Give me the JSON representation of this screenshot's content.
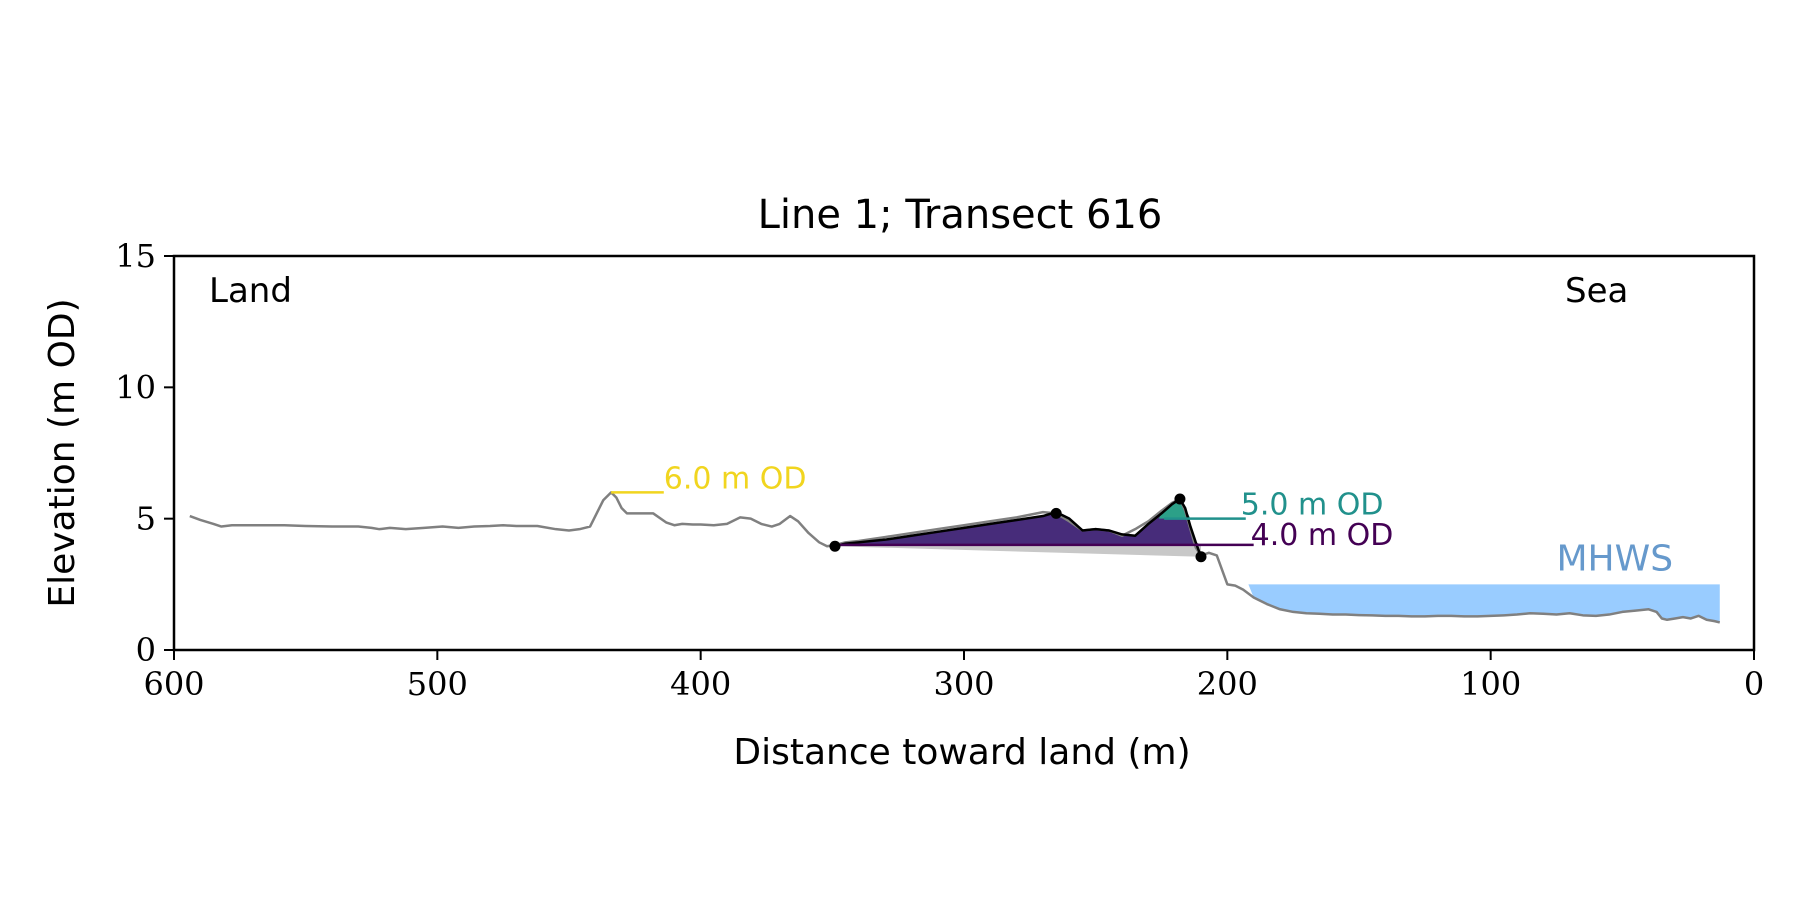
{
  "chart_data": {
    "type": "line",
    "title": "Line 1; Transect 616",
    "xlabel": "Distance toward land (m)",
    "ylabel": "Elevation (m OD)",
    "xlim": [
      600,
      0
    ],
    "ylim": [
      0,
      15
    ],
    "x_ticks": [
      600,
      500,
      400,
      300,
      200,
      100,
      0
    ],
    "y_ticks": [
      0,
      5,
      10,
      15
    ],
    "grid": false,
    "annotations": {
      "land": "Land",
      "sea": "Sea",
      "mhws": "MHWS"
    },
    "colors": {
      "profile": "#808080",
      "dune_outline": "#000000",
      "fill_4m": "#472c7a",
      "fill_5m": "#2ca088",
      "fill_below": "#c8c8c8",
      "contour_6m": "#f1d51f",
      "contour_5m": "#21918c",
      "contour_4m": "#440154",
      "mhws_fill": "#99ccff",
      "mhws_text": "#6699cc"
    },
    "mhws_level": 2.5,
    "mhws_x_range": [
      192,
      13
    ],
    "profile": {
      "x": [
        594,
        590,
        585,
        582,
        578,
        572,
        565,
        558,
        550,
        540,
        530,
        525,
        522,
        518,
        512,
        505,
        498,
        492,
        486,
        480,
        475,
        470,
        462,
        455,
        450,
        446,
        442,
        440,
        437,
        434,
        432,
        430,
        428,
        426,
        422,
        418,
        413,
        410,
        407,
        403,
        400,
        395,
        390,
        385,
        381,
        377,
        373,
        370,
        366,
        363,
        359,
        355,
        352,
        349,
        345,
        340,
        330,
        320,
        310,
        300,
        290,
        280,
        270,
        265,
        260,
        255,
        250,
        245,
        240,
        235,
        230,
        225,
        221,
        218,
        216,
        214,
        212,
        210,
        207,
        204,
        200,
        197,
        194,
        190,
        185,
        180,
        175,
        170,
        165,
        160,
        155,
        150,
        145,
        140,
        135,
        130,
        125,
        120,
        115,
        110,
        105,
        100,
        95,
        90,
        85,
        80,
        75,
        70,
        65,
        60,
        55,
        50,
        45,
        40,
        37,
        35,
        33,
        30,
        27,
        24,
        21,
        18,
        15,
        13
      ],
      "y": [
        5.1,
        4.95,
        4.8,
        4.7,
        4.75,
        4.75,
        4.75,
        4.75,
        4.72,
        4.7,
        4.7,
        4.65,
        4.6,
        4.65,
        4.6,
        4.65,
        4.7,
        4.65,
        4.7,
        4.72,
        4.75,
        4.72,
        4.72,
        4.6,
        4.55,
        4.6,
        4.7,
        5.1,
        5.7,
        6.0,
        5.8,
        5.4,
        5.2,
        5.2,
        5.2,
        5.2,
        4.85,
        4.75,
        4.8,
        4.78,
        4.78,
        4.75,
        4.8,
        5.05,
        5.0,
        4.8,
        4.7,
        4.8,
        5.1,
        4.9,
        4.45,
        4.1,
        3.95,
        4.0,
        4.1,
        4.15,
        4.3,
        4.45,
        4.6,
        4.75,
        4.9,
        5.05,
        5.25,
        5.2,
        4.9,
        4.55,
        4.6,
        4.55,
        4.35,
        4.6,
        4.9,
        5.3,
        5.6,
        5.75,
        5.3,
        4.6,
        3.9,
        3.6,
        3.7,
        3.6,
        2.5,
        2.45,
        2.3,
        2.0,
        1.75,
        1.55,
        1.45,
        1.4,
        1.38,
        1.35,
        1.35,
        1.33,
        1.32,
        1.3,
        1.3,
        1.28,
        1.28,
        1.3,
        1.3,
        1.28,
        1.28,
        1.3,
        1.32,
        1.35,
        1.4,
        1.38,
        1.35,
        1.4,
        1.32,
        1.3,
        1.35,
        1.45,
        1.5,
        1.55,
        1.45,
        1.2,
        1.15,
        1.2,
        1.25,
        1.2,
        1.3,
        1.15,
        1.1,
        1.05
      ]
    },
    "dune": {
      "x": [
        349,
        345,
        340,
        330,
        320,
        310,
        300,
        290,
        280,
        270,
        265,
        260,
        255,
        250,
        245,
        240,
        235,
        230,
        225,
        221,
        218,
        216,
        214,
        212,
        210
      ],
      "y": [
        3.95,
        4.05,
        4.1,
        4.2,
        4.35,
        4.5,
        4.65,
        4.8,
        4.95,
        5.1,
        5.25,
        5.0,
        4.55,
        4.6,
        4.55,
        4.4,
        4.35,
        4.8,
        5.2,
        5.55,
        5.75,
        5.4,
        4.7,
        4.1,
        3.55
      ]
    },
    "dune_points": {
      "x": [
        349,
        265,
        218,
        210
      ],
      "y": [
        3.95,
        5.2,
        5.75,
        3.55
      ]
    },
    "contours": [
      {
        "label": "6.0 m OD",
        "elevation": 6.0,
        "x0": 434,
        "x1": 414
      },
      {
        "label": "5.0 m OD",
        "elevation": 5.0,
        "x0": 224,
        "x1": 193
      },
      {
        "label": "4.0 m OD",
        "elevation": 4.0,
        "x0": 349,
        "x1": 190
      }
    ],
    "baseline": {
      "x": [
        349,
        210
      ],
      "y": [
        3.95,
        3.55
      ]
    }
  }
}
